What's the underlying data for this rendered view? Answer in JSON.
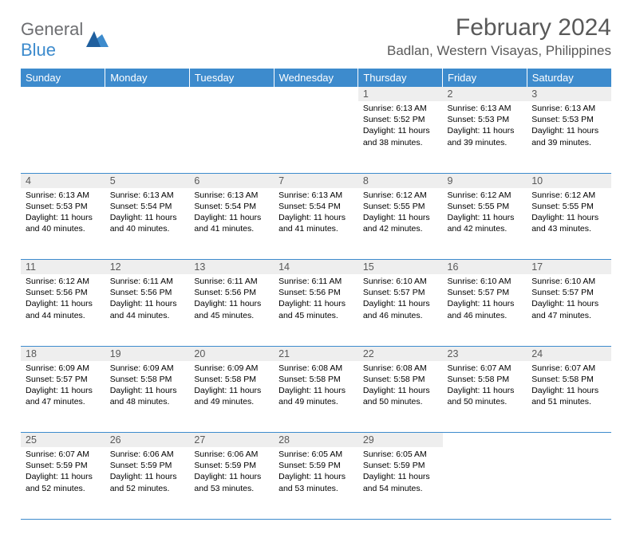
{
  "brand": {
    "name1": "General",
    "name2": "Blue"
  },
  "title": "February 2024",
  "location": "Badlan, Western Visayas, Philippines",
  "colors": {
    "header_bg": "#3d8bcd",
    "header_text": "#ffffff",
    "daynum_bg": "#eeeeee",
    "text": "#595959",
    "cell_border": "#3d8bcd"
  },
  "fonts": {
    "title_pt": 30,
    "location_pt": 17,
    "dayhdr_pt": 13,
    "daynum_pt": 12.5,
    "body_pt": 10.5
  },
  "day_headers": [
    "Sunday",
    "Monday",
    "Tuesday",
    "Wednesday",
    "Thursday",
    "Friday",
    "Saturday"
  ],
  "weeks": [
    [
      null,
      null,
      null,
      null,
      {
        "n": "1",
        "sr": "Sunrise: 6:13 AM",
        "ss": "Sunset: 5:52 PM",
        "dl": "Daylight: 11 hours and 38 minutes."
      },
      {
        "n": "2",
        "sr": "Sunrise: 6:13 AM",
        "ss": "Sunset: 5:53 PM",
        "dl": "Daylight: 11 hours and 39 minutes."
      },
      {
        "n": "3",
        "sr": "Sunrise: 6:13 AM",
        "ss": "Sunset: 5:53 PM",
        "dl": "Daylight: 11 hours and 39 minutes."
      }
    ],
    [
      {
        "n": "4",
        "sr": "Sunrise: 6:13 AM",
        "ss": "Sunset: 5:53 PM",
        "dl": "Daylight: 11 hours and 40 minutes."
      },
      {
        "n": "5",
        "sr": "Sunrise: 6:13 AM",
        "ss": "Sunset: 5:54 PM",
        "dl": "Daylight: 11 hours and 40 minutes."
      },
      {
        "n": "6",
        "sr": "Sunrise: 6:13 AM",
        "ss": "Sunset: 5:54 PM",
        "dl": "Daylight: 11 hours and 41 minutes."
      },
      {
        "n": "7",
        "sr": "Sunrise: 6:13 AM",
        "ss": "Sunset: 5:54 PM",
        "dl": "Daylight: 11 hours and 41 minutes."
      },
      {
        "n": "8",
        "sr": "Sunrise: 6:12 AM",
        "ss": "Sunset: 5:55 PM",
        "dl": "Daylight: 11 hours and 42 minutes."
      },
      {
        "n": "9",
        "sr": "Sunrise: 6:12 AM",
        "ss": "Sunset: 5:55 PM",
        "dl": "Daylight: 11 hours and 42 minutes."
      },
      {
        "n": "10",
        "sr": "Sunrise: 6:12 AM",
        "ss": "Sunset: 5:55 PM",
        "dl": "Daylight: 11 hours and 43 minutes."
      }
    ],
    [
      {
        "n": "11",
        "sr": "Sunrise: 6:12 AM",
        "ss": "Sunset: 5:56 PM",
        "dl": "Daylight: 11 hours and 44 minutes."
      },
      {
        "n": "12",
        "sr": "Sunrise: 6:11 AM",
        "ss": "Sunset: 5:56 PM",
        "dl": "Daylight: 11 hours and 44 minutes."
      },
      {
        "n": "13",
        "sr": "Sunrise: 6:11 AM",
        "ss": "Sunset: 5:56 PM",
        "dl": "Daylight: 11 hours and 45 minutes."
      },
      {
        "n": "14",
        "sr": "Sunrise: 6:11 AM",
        "ss": "Sunset: 5:56 PM",
        "dl": "Daylight: 11 hours and 45 minutes."
      },
      {
        "n": "15",
        "sr": "Sunrise: 6:10 AM",
        "ss": "Sunset: 5:57 PM",
        "dl": "Daylight: 11 hours and 46 minutes."
      },
      {
        "n": "16",
        "sr": "Sunrise: 6:10 AM",
        "ss": "Sunset: 5:57 PM",
        "dl": "Daylight: 11 hours and 46 minutes."
      },
      {
        "n": "17",
        "sr": "Sunrise: 6:10 AM",
        "ss": "Sunset: 5:57 PM",
        "dl": "Daylight: 11 hours and 47 minutes."
      }
    ],
    [
      {
        "n": "18",
        "sr": "Sunrise: 6:09 AM",
        "ss": "Sunset: 5:57 PM",
        "dl": "Daylight: 11 hours and 47 minutes."
      },
      {
        "n": "19",
        "sr": "Sunrise: 6:09 AM",
        "ss": "Sunset: 5:58 PM",
        "dl": "Daylight: 11 hours and 48 minutes."
      },
      {
        "n": "20",
        "sr": "Sunrise: 6:09 AM",
        "ss": "Sunset: 5:58 PM",
        "dl": "Daylight: 11 hours and 49 minutes."
      },
      {
        "n": "21",
        "sr": "Sunrise: 6:08 AM",
        "ss": "Sunset: 5:58 PM",
        "dl": "Daylight: 11 hours and 49 minutes."
      },
      {
        "n": "22",
        "sr": "Sunrise: 6:08 AM",
        "ss": "Sunset: 5:58 PM",
        "dl": "Daylight: 11 hours and 50 minutes."
      },
      {
        "n": "23",
        "sr": "Sunrise: 6:07 AM",
        "ss": "Sunset: 5:58 PM",
        "dl": "Daylight: 11 hours and 50 minutes."
      },
      {
        "n": "24",
        "sr": "Sunrise: 6:07 AM",
        "ss": "Sunset: 5:58 PM",
        "dl": "Daylight: 11 hours and 51 minutes."
      }
    ],
    [
      {
        "n": "25",
        "sr": "Sunrise: 6:07 AM",
        "ss": "Sunset: 5:59 PM",
        "dl": "Daylight: 11 hours and 52 minutes."
      },
      {
        "n": "26",
        "sr": "Sunrise: 6:06 AM",
        "ss": "Sunset: 5:59 PM",
        "dl": "Daylight: 11 hours and 52 minutes."
      },
      {
        "n": "27",
        "sr": "Sunrise: 6:06 AM",
        "ss": "Sunset: 5:59 PM",
        "dl": "Daylight: 11 hours and 53 minutes."
      },
      {
        "n": "28",
        "sr": "Sunrise: 6:05 AM",
        "ss": "Sunset: 5:59 PM",
        "dl": "Daylight: 11 hours and 53 minutes."
      },
      {
        "n": "29",
        "sr": "Sunrise: 6:05 AM",
        "ss": "Sunset: 5:59 PM",
        "dl": "Daylight: 11 hours and 54 minutes."
      },
      null,
      null
    ]
  ]
}
